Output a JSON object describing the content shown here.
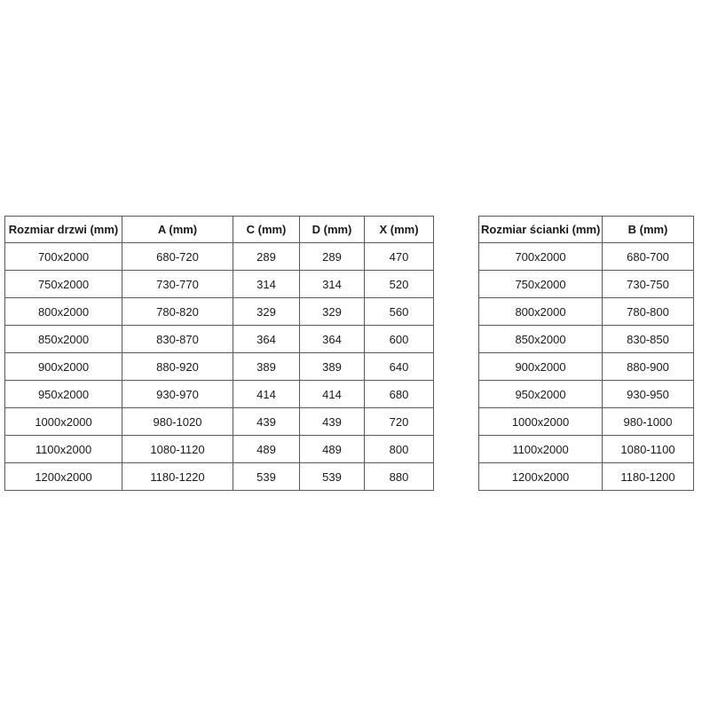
{
  "colors": {
    "background": "#ffffff",
    "border": "#595959",
    "text": "#1a1a1a"
  },
  "door_table": {
    "name": "door-size-table",
    "headers": [
      "Rozmiar drzwi (mm)",
      "A (mm)",
      "C (mm)",
      "D (mm)",
      "X (mm)"
    ],
    "rows": [
      [
        "700x2000",
        "680-720",
        "289",
        "289",
        "470"
      ],
      [
        "750x2000",
        "730-770",
        "314",
        "314",
        "520"
      ],
      [
        "800x2000",
        "780-820",
        "329",
        "329",
        "560"
      ],
      [
        "850x2000",
        "830-870",
        "364",
        "364",
        "600"
      ],
      [
        "900x2000",
        "880-920",
        "389",
        "389",
        "640"
      ],
      [
        "950x2000",
        "930-970",
        "414",
        "414",
        "680"
      ],
      [
        "1000x2000",
        "980-1020",
        "439",
        "439",
        "720"
      ],
      [
        "1100x2000",
        "1080-1120",
        "489",
        "489",
        "800"
      ],
      [
        "1200x2000",
        "1180-1220",
        "539",
        "539",
        "880"
      ]
    ]
  },
  "wall_table": {
    "name": "wall-size-table",
    "headers": [
      "Rozmiar ścianki (mm)",
      "B (mm)"
    ],
    "rows": [
      [
        "700x2000",
        "680-700"
      ],
      [
        "750x2000",
        "730-750"
      ],
      [
        "800x2000",
        "780-800"
      ],
      [
        "850x2000",
        "830-850"
      ],
      [
        "900x2000",
        "880-900"
      ],
      [
        "950x2000",
        "930-950"
      ],
      [
        "1000x2000",
        "980-1000"
      ],
      [
        "1100x2000",
        "1080-1100"
      ],
      [
        "1200x2000",
        "1180-1200"
      ]
    ]
  }
}
